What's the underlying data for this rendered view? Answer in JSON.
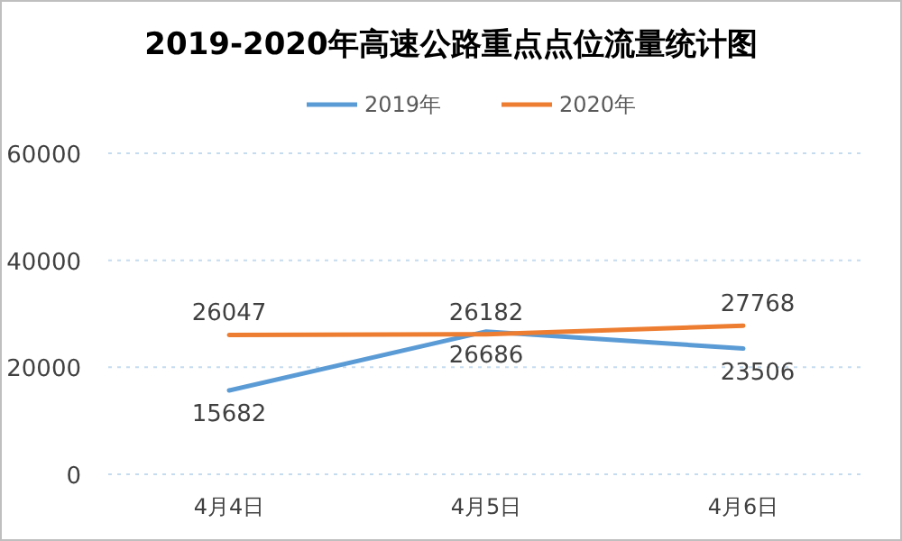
{
  "chart_data": {
    "type": "line",
    "title": "2019-2020年高速公路重点点位流量统计图",
    "categories": [
      "4月4日",
      "4月5日",
      "4月6日"
    ],
    "series": [
      {
        "name": "2019年",
        "color": "#5b9bd5",
        "values": [
          15682,
          26686,
          23506
        ]
      },
      {
        "name": "2020年",
        "color": "#ed7d31",
        "values": [
          26047,
          26182,
          27768
        ]
      }
    ],
    "ylim": [
      0,
      60000
    ],
    "yticks": [
      0,
      20000,
      40000,
      60000
    ],
    "grid": "y",
    "legend": "top",
    "data_labels": true,
    "marker": "none",
    "line_style": "solid"
  }
}
